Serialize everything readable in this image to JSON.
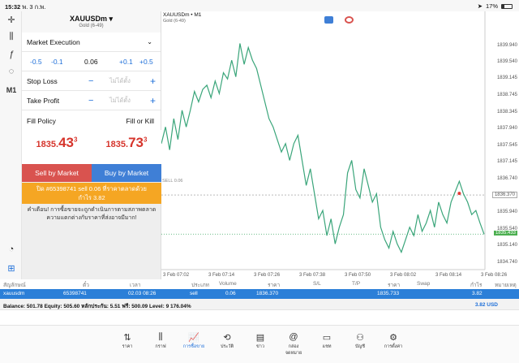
{
  "status": {
    "time": "15:32",
    "date": "พ. 3 ก.พ.",
    "battery": "17%"
  },
  "toolbar": {
    "m1": "M1"
  },
  "order": {
    "symbol": "XAUUSDm",
    "symbol_sub": "Gold (6-49)",
    "execution": "Market Execution",
    "vol_minus_big": "-0.5",
    "vol_minus": "-0.1",
    "volume": "0.06",
    "vol_plus": "+0.1",
    "vol_plus_big": "+0.5",
    "stop_loss_label": "Stop Loss",
    "take_profit_label": "Take Profit",
    "minus": "−",
    "plus": "+",
    "placeholder": "ไม่ได้ตั้ง",
    "fill_policy_label": "Fill Policy",
    "fill_policy_value": "Fill or Kill",
    "bid_main": "1835.",
    "bid_big": "43",
    "bid_sup": "3",
    "ask_main": "1835.",
    "ask_big": "73",
    "ask_sup": "3",
    "sell_btn": "Sell by Market",
    "buy_btn": "Buy by Market",
    "notice_line1": "ปิด #65398741 sell 0.06 ที่ราคาตลาดด้วย",
    "notice_line2": "กำไร 3.82",
    "warning": "คำเตือน! การซื้อขายจะถูกดำเนินการตามสภาพตลาด ความแตกต่างกับราคาที่ส่งอาจมีมาก!"
  },
  "chart": {
    "title": "XAUUSDm • M1",
    "subtitle": "Gold (6-49)",
    "sell_label": "SELL 0.06",
    "line_color": "#3aa57a",
    "ylabels": [
      "1839.940",
      "1839.540",
      "1839.145",
      "1838.745",
      "1838.345",
      "1837.940",
      "1837.545",
      "1837.145",
      "1836.740",
      "1836.370",
      "1835.940",
      "1835.540",
      "1835.433",
      "1835.140",
      "1834.740"
    ],
    "xlabels": [
      "3 Feb 07:02",
      "3 Feb 07:14",
      "3 Feb 07:26",
      "3 Feb 07:38",
      "3 Feb 07:50",
      "3 Feb 08:02",
      "3 Feb 08:14",
      "3 Feb 08:26"
    ]
  },
  "chart_data": {
    "type": "line",
    "x": [
      "07:02",
      "07:03",
      "07:05",
      "07:07",
      "07:09",
      "07:10",
      "07:12",
      "07:13",
      "07:15",
      "07:16",
      "07:18",
      "07:19",
      "07:20",
      "07:22",
      "07:23",
      "07:24",
      "07:25",
      "07:26",
      "07:27",
      "07:28",
      "07:29",
      "07:30",
      "07:31",
      "07:32",
      "07:33",
      "07:34",
      "07:35",
      "07:36",
      "07:37",
      "07:38",
      "07:39",
      "07:40",
      "07:41",
      "07:42",
      "07:43",
      "07:44",
      "07:45",
      "07:46",
      "07:47",
      "07:48",
      "07:49",
      "07:50",
      "07:51",
      "07:52",
      "07:53",
      "07:54",
      "07:55",
      "07:56",
      "07:57",
      "07:58",
      "07:59",
      "08:00",
      "08:01",
      "08:02",
      "08:03",
      "08:04",
      "08:05",
      "08:06",
      "08:07",
      "08:08",
      "08:09",
      "08:10",
      "08:11",
      "08:12",
      "08:13",
      "08:14",
      "08:15",
      "08:16",
      "08:17",
      "08:18",
      "08:19",
      "08:20",
      "08:21",
      "08:22",
      "08:23",
      "08:24",
      "08:25",
      "08:26",
      "08:27"
    ],
    "values": [
      1837.6,
      1838.0,
      1837.45,
      1838.2,
      1837.7,
      1838.4,
      1838.0,
      1838.4,
      1838.85,
      1838.6,
      1838.9,
      1839.0,
      1838.7,
      1839.1,
      1838.8,
      1839.3,
      1839.15,
      1839.6,
      1839.2,
      1840.0,
      1839.5,
      1839.9,
      1839.6,
      1839.4,
      1839.0,
      1838.6,
      1838.2,
      1838.0,
      1837.7,
      1837.4,
      1837.6,
      1837.2,
      1837.6,
      1837.8,
      1837.2,
      1836.6,
      1837.0,
      1836.4,
      1835.8,
      1836.0,
      1835.4,
      1835.8,
      1835.2,
      1835.6,
      1835.9,
      1836.9,
      1837.2,
      1836.5,
      1836.3,
      1837.0,
      1836.6,
      1836.2,
      1836.4,
      1835.6,
      1835.3,
      1835.1,
      1835.5,
      1835.2,
      1835.0,
      1835.3,
      1835.6,
      1835.4,
      1835.9,
      1835.5,
      1835.7,
      1836.0,
      1835.6,
      1836.2,
      1835.9,
      1835.7,
      1836.2,
      1836.45,
      1836.7,
      1836.4,
      1836.2,
      1835.9,
      1836.0,
      1835.7,
      1835.433
    ],
    "ylim": [
      1834.74,
      1840.34
    ],
    "sell_level": 1836.37,
    "last_price": 1835.433
  },
  "trade": {
    "headers": [
      "สัญลักษณ์",
      "ตั๋ว",
      "เวลา",
      "ประเภท",
      "Volume",
      "ราคา",
      "S/L",
      "T/P",
      "ราคา",
      "Swap",
      "กำไร",
      "หมายเหตุ"
    ],
    "row": {
      "symbol": "xauusdm",
      "ticket": "65398741",
      "time": "02.03 08:26",
      "type": "sell",
      "volume": "0.06",
      "price": "1836.370",
      "current": "1835.733",
      "profit": "3.82"
    },
    "balance": "Balance: 501.78 Equity: 505.60 หลักประกัน: 5.51 ฟรี: 500.09 Level: 9 176.04%",
    "total": "3.82  USD"
  },
  "tabs": [
    {
      "label": "ราคา",
      "icon": "⇅"
    },
    {
      "label": "กราฟ",
      "icon": "⫼"
    },
    {
      "label": "การซื้อขาย",
      "icon": "📈"
    },
    {
      "label": "ประวัติ",
      "icon": "⟲"
    },
    {
      "label": "ข่าว",
      "icon": "▤"
    },
    {
      "label": "กล่องจดหมาย",
      "icon": "@"
    },
    {
      "label": "แชท",
      "icon": "▭"
    },
    {
      "label": "บัญชี",
      "icon": "⚇"
    },
    {
      "label": "การตั้งค่า",
      "icon": "⚙"
    }
  ]
}
